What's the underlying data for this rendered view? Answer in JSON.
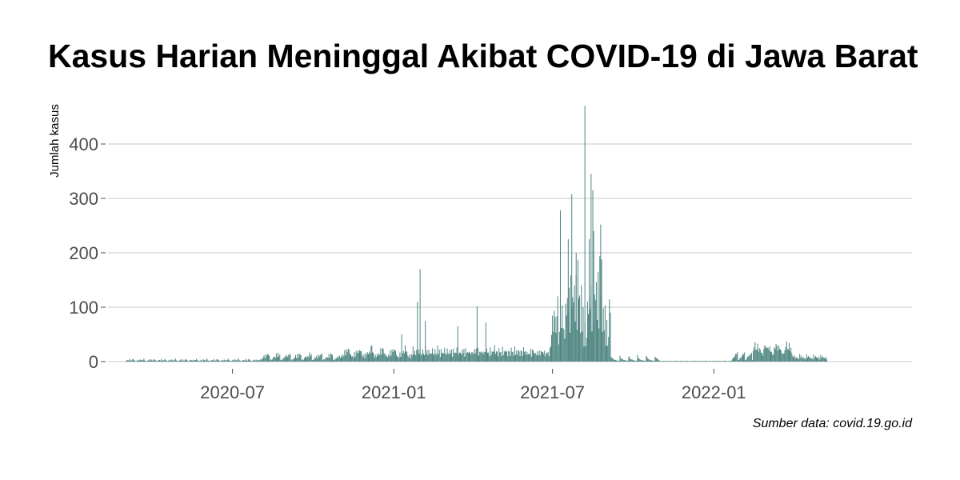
{
  "chart_data": {
    "type": "bar",
    "title": "Kasus Harian Meninggal Akibat COVID-19 di Jawa Barat",
    "ylabel": "Jumlah kasus",
    "xlabel": "",
    "caption": "Sumber data: covid.19.go.id",
    "bar_color": "#4e8581",
    "grid": true,
    "ylim": [
      0,
      470
    ],
    "xlim": [
      "2020-02-10",
      "2022-08-15"
    ],
    "y_ticks": [
      0,
      100,
      200,
      300,
      400
    ],
    "y_tick_labels": [
      "0",
      "100",
      "200",
      "300",
      "400"
    ],
    "x_ticks": [
      "2020-07-01",
      "2021-01-01",
      "2021-07-01",
      "2022-01-01"
    ],
    "x_tick_labels": [
      "2020-07",
      "2021-01",
      "2021-07",
      "2022-01"
    ],
    "baseline_series": [
      {
        "from": "2020-03-01",
        "to": "2020-07-31",
        "values": [
          1,
          2,
          3,
          4,
          2,
          5,
          3,
          2,
          4,
          6,
          3,
          2
        ]
      },
      {
        "from": "2020-08-01",
        "to": "2020-10-31",
        "values": [
          3,
          5,
          4,
          7,
          9,
          12,
          8,
          15,
          10,
          18,
          14,
          16
        ]
      },
      {
        "from": "2020-11-01",
        "to": "2021-01-20",
        "values": [
          10,
          14,
          8,
          18,
          12,
          22,
          15,
          26,
          18,
          30,
          24,
          20,
          16
        ]
      },
      {
        "from": "2021-01-21",
        "to": "2021-05-31",
        "values": [
          20,
          14,
          30,
          18,
          24,
          12,
          28,
          16,
          22,
          18,
          26,
          20,
          14,
          24
        ]
      },
      {
        "from": "2021-06-01",
        "to": "2021-06-28",
        "values": [
          18,
          22,
          14,
          20,
          16,
          24,
          12,
          26,
          20,
          18
        ]
      },
      {
        "from": "2021-06-29",
        "to": "2021-07-14",
        "values": [
          40,
          60,
          90,
          75,
          110,
          85,
          70,
          95,
          120
        ]
      },
      {
        "from": "2021-07-15",
        "to": "2021-09-05",
        "values": [
          60,
          130,
          90,
          160,
          110,
          140,
          70,
          180,
          100,
          150,
          120,
          200,
          90,
          170,
          80,
          220,
          120,
          160,
          60,
          140,
          70,
          110,
          40,
          90,
          30
        ]
      },
      {
        "from": "2021-09-06",
        "to": "2021-10-31",
        "values": [
          12,
          8,
          6,
          5,
          4,
          3,
          3,
          2,
          2,
          2
        ]
      },
      {
        "from": "2021-11-01",
        "to": "2022-01-20",
        "values": [
          1,
          2,
          1,
          1,
          2,
          1,
          1,
          2,
          1,
          2,
          1
        ]
      },
      {
        "from": "2022-01-21",
        "to": "2022-02-14",
        "values": [
          3,
          5,
          8,
          10,
          12,
          15,
          18,
          20
        ]
      },
      {
        "from": "2022-02-15",
        "to": "2022-03-31",
        "values": [
          28,
          32,
          38,
          30,
          26,
          34,
          24,
          28,
          22,
          20,
          18,
          16
        ]
      },
      {
        "from": "2022-04-01",
        "to": "2022-05-10",
        "values": [
          14,
          10,
          12,
          8,
          10,
          6,
          9,
          5
        ]
      }
    ],
    "spikes": [
      {
        "date": "2021-01-31",
        "value": 170
      },
      {
        "date": "2021-01-28",
        "value": 110
      },
      {
        "date": "2021-02-06",
        "value": 75
      },
      {
        "date": "2021-01-10",
        "value": 50
      },
      {
        "date": "2020-12-07",
        "value": 30
      },
      {
        "date": "2021-03-15",
        "value": 65
      },
      {
        "date": "2021-04-06",
        "value": 102
      },
      {
        "date": "2021-04-16",
        "value": 72
      },
      {
        "date": "2021-04-26",
        "value": 30
      },
      {
        "date": "2021-07-10",
        "value": 278
      },
      {
        "date": "2021-07-23",
        "value": 308
      },
      {
        "date": "2021-07-19",
        "value": 225
      },
      {
        "date": "2021-07-28",
        "value": 200
      },
      {
        "date": "2021-08-07",
        "value": 470
      },
      {
        "date": "2021-08-12",
        "value": 225
      },
      {
        "date": "2021-08-14",
        "value": 345
      },
      {
        "date": "2021-08-16",
        "value": 315
      },
      {
        "date": "2021-08-17",
        "value": 240
      },
      {
        "date": "2021-08-25",
        "value": 252
      },
      {
        "date": "2021-08-26",
        "value": 188
      }
    ]
  }
}
